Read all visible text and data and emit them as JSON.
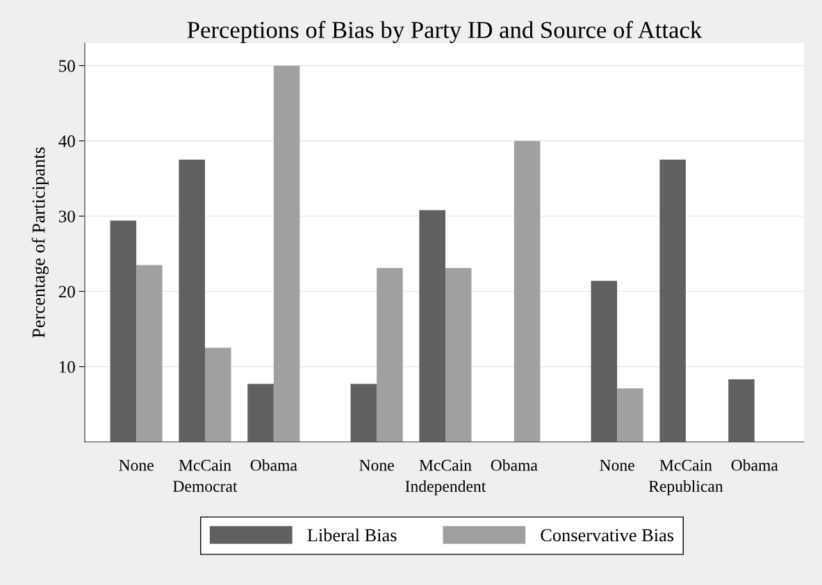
{
  "chart_data": {
    "type": "bar",
    "title": "Perceptions of Bias by Party ID and Source of Attack",
    "ylabel": "Percentage of Participants",
    "categories": [
      "None",
      "McCain",
      "Obama",
      "None",
      "McCain",
      "Obama",
      "None",
      "McCain",
      "Obama"
    ],
    "annotations": [
      "Democrat",
      "Independent",
      "Republican"
    ],
    "series": [
      {
        "name": "Liberal Bias",
        "color": "#606060",
        "values": [
          29.4,
          37.5,
          7.7,
          7.7,
          30.8,
          0,
          21.4,
          37.5,
          8.3
        ]
      },
      {
        "name": "Conservative Bias",
        "color": "#a0a0a0",
        "values": [
          23.5,
          12.5,
          50,
          23.1,
          23.1,
          40,
          7.1,
          0,
          0
        ]
      }
    ],
    "ylim": [
      0,
      53
    ],
    "yticks": [
      10,
      20,
      30,
      40,
      50
    ],
    "grid": "y",
    "legend": "bottom"
  }
}
